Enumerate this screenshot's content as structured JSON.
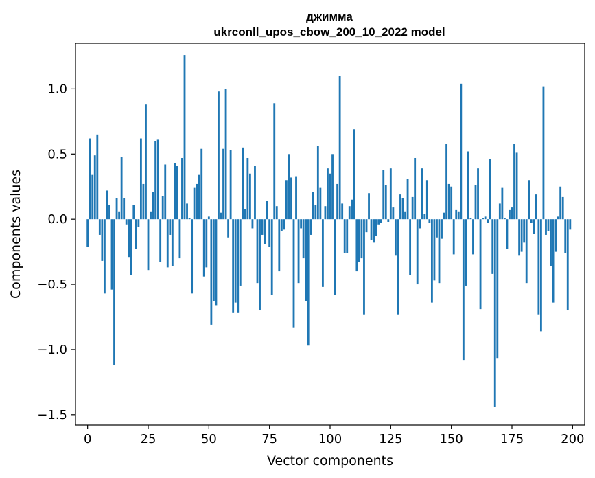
{
  "chart_data": {
    "type": "bar",
    "title_line1": "джимма",
    "title_line2": "ukrconll_upos_cbow_200_10_2022 model",
    "xlabel": "Vector components",
    "ylabel": "Components values",
    "xlim": [
      -5,
      205
    ],
    "ylim": [
      -1.58,
      1.35
    ],
    "xticks": [
      0,
      25,
      50,
      75,
      100,
      125,
      150,
      175,
      200
    ],
    "xtick_labels": [
      "0",
      "25",
      "50",
      "75",
      "100",
      "125",
      "150",
      "175",
      "200"
    ],
    "yticks": [
      -1.5,
      -1.0,
      -0.5,
      0.0,
      0.5,
      1.0
    ],
    "ytick_labels": [
      "−1.5",
      "−1.0",
      "−0.5",
      "0.0",
      "0.5",
      "1.0"
    ],
    "bar_color": "#1f77b4",
    "grid": false,
    "values": [
      -0.21,
      0.62,
      0.34,
      0.49,
      0.65,
      -0.12,
      -0.32,
      -0.57,
      0.22,
      0.11,
      -0.54,
      -1.12,
      0.16,
      0.06,
      0.48,
      0.16,
      -0.04,
      -0.29,
      -0.43,
      0.11,
      -0.23,
      -0.06,
      0.62,
      0.27,
      0.88,
      -0.39,
      0.06,
      0.21,
      0.6,
      0.61,
      -0.33,
      0.18,
      0.42,
      -0.37,
      -0.12,
      -0.36,
      0.43,
      0.41,
      -0.3,
      0.47,
      1.26,
      0.12,
      0.01,
      -0.57,
      0.24,
      0.27,
      0.34,
      0.54,
      -0.44,
      -0.37,
      0.02,
      -0.81,
      -0.63,
      -0.66,
      0.98,
      0.05,
      0.54,
      1.0,
      -0.14,
      0.53,
      -0.72,
      -0.64,
      -0.72,
      -0.51,
      0.55,
      0.08,
      0.47,
      0.35,
      -0.07,
      0.41,
      -0.49,
      -0.7,
      -0.12,
      -0.19,
      0.14,
      -0.21,
      -0.58,
      0.89,
      0.1,
      -0.4,
      -0.09,
      -0.08,
      0.3,
      0.5,
      0.32,
      -0.83,
      0.33,
      -0.49,
      -0.07,
      -0.3,
      -0.63,
      -0.97,
      -0.12,
      0.21,
      0.11,
      0.56,
      0.24,
      -0.52,
      0.1,
      0.39,
      0.35,
      0.5,
      -0.58,
      0.27,
      1.1,
      0.12,
      -0.26,
      -0.26,
      0.1,
      0.15,
      0.69,
      -0.4,
      -0.33,
      -0.3,
      -0.73,
      -0.1,
      0.2,
      -0.16,
      -0.18,
      -0.13,
      -0.04,
      -0.03,
      0.38,
      0.26,
      -0.02,
      0.39,
      0.09,
      -0.28,
      -0.73,
      0.19,
      0.16,
      0.06,
      0.31,
      -0.43,
      0.17,
      0.47,
      -0.5,
      -0.07,
      0.39,
      0.04,
      0.3,
      -0.03,
      -0.64,
      -0.47,
      -0.14,
      -0.49,
      -0.15,
      0.05,
      0.58,
      0.27,
      0.25,
      -0.27,
      0.07,
      0.06,
      1.04,
      -1.08,
      -0.51,
      0.52,
      0.01,
      -0.27,
      0.26,
      0.39,
      -0.69,
      0.01,
      0.02,
      -0.03,
      0.46,
      -0.42,
      -1.44,
      -1.07,
      0.12,
      0.24,
      0.01,
      -0.23,
      0.07,
      0.09,
      0.58,
      0.51,
      -0.28,
      -0.25,
      -0.18,
      -0.49,
      0.3,
      -0.03,
      -0.11,
      0.19,
      -0.73,
      -0.86,
      1.02,
      -0.12,
      -0.09,
      -0.36,
      -0.64,
      -0.25,
      0.02,
      0.25,
      0.17,
      -0.26,
      -0.7,
      -0.08
    ]
  }
}
